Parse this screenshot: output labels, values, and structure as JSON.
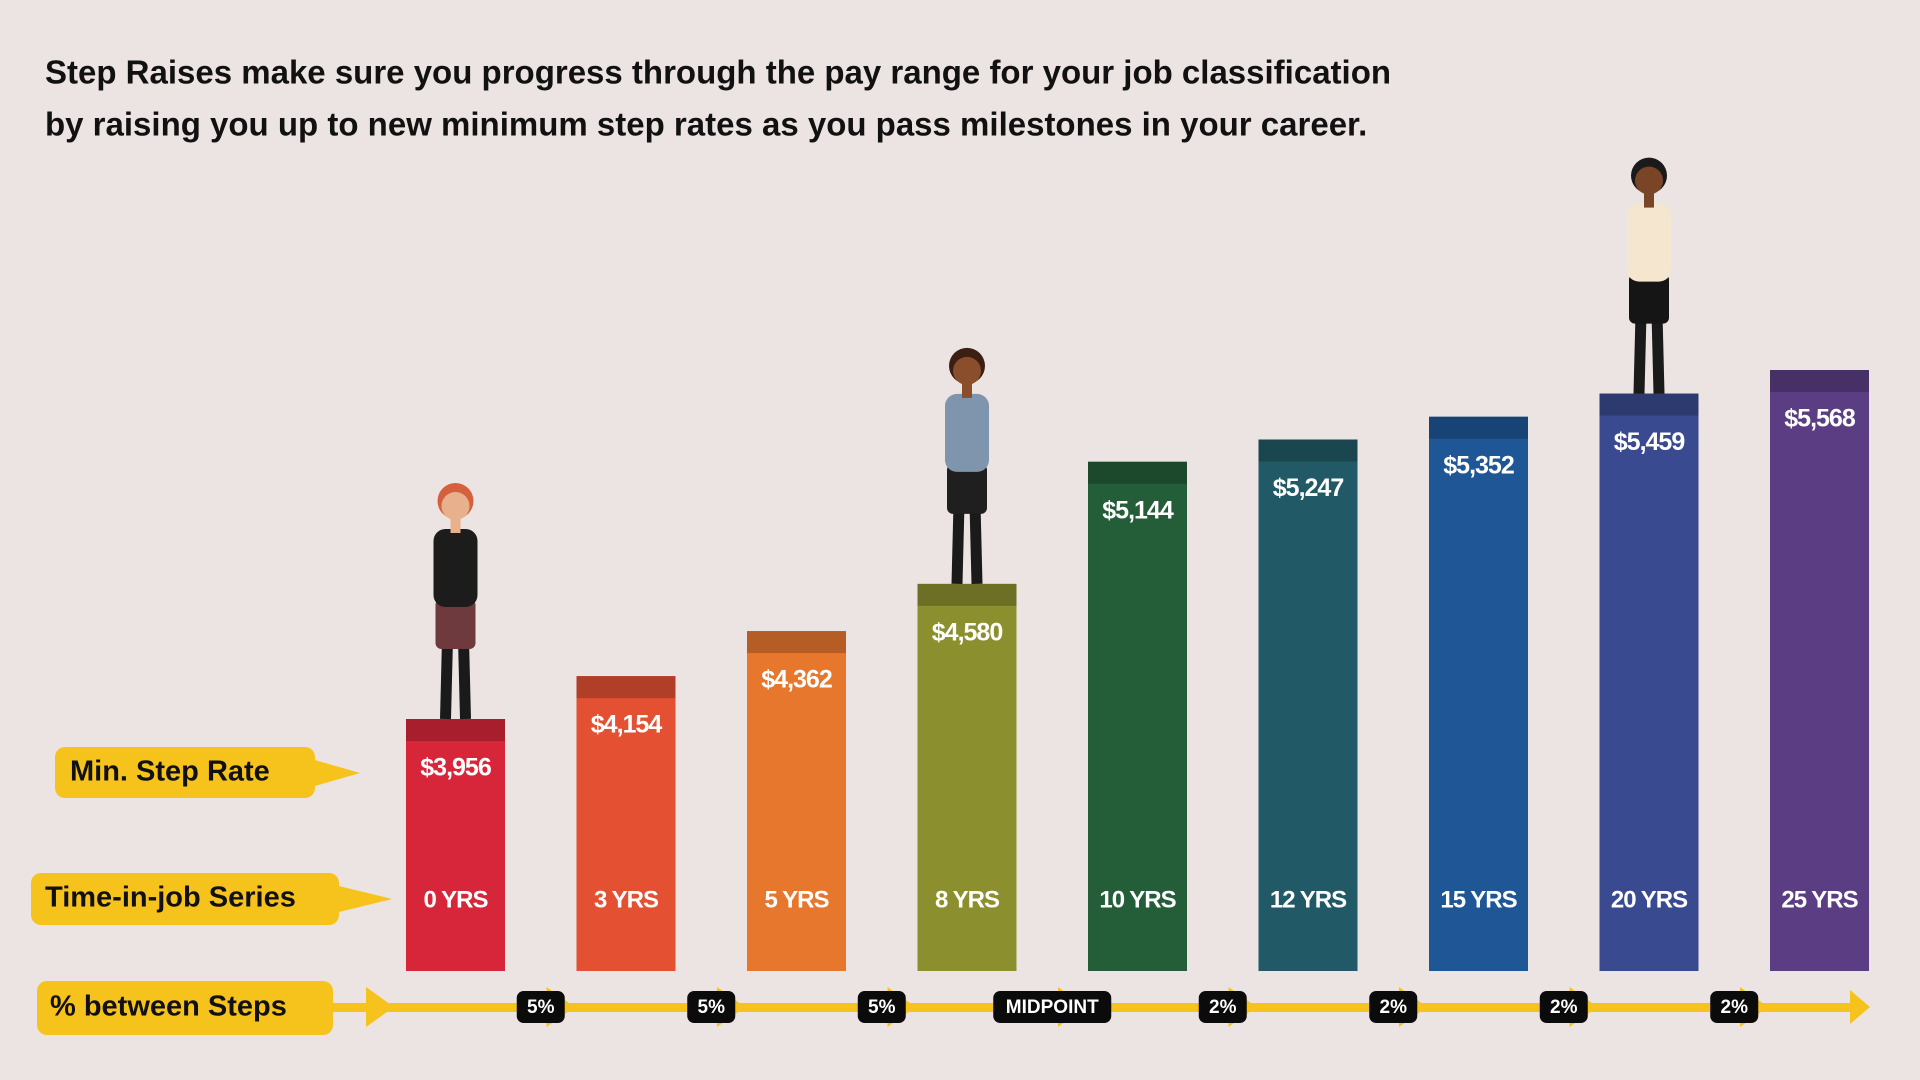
{
  "chart_data": {
    "type": "bar",
    "title_lines": [
      "Step Raises make sure you progress through the pay range for your job classification",
      "by raising you up to new minimum step rates as you pass milestones in your career."
    ],
    "row_labels": [
      "Min. Step Rate",
      "Time-in-job Series",
      "% between Steps"
    ],
    "categories": [
      "0 YRS",
      "3 YRS",
      "5 YRS",
      "8 YRS",
      "10 YRS",
      "12 YRS",
      "15 YRS",
      "20 YRS",
      "25 YRS"
    ],
    "values": [
      3956,
      4154,
      4362,
      4580,
      5144,
      5247,
      5352,
      5459,
      5568
    ],
    "value_labels": [
      "$3,956",
      "$4,154",
      "$4,362",
      "$4,580",
      "$5,144",
      "$5,247",
      "$5,352",
      "$5,459",
      "$5,568"
    ],
    "colors": [
      "#d7263a",
      "#e35032",
      "#e8772e",
      "#8c8f2e",
      "#245e38",
      "#215a66",
      "#1f5696",
      "#3a4a90",
      "#5a3d82"
    ],
    "steps": {
      "values": [
        5,
        5,
        5,
        null,
        2,
        2,
        2,
        2
      ],
      "value_labels": [
        "5%",
        "5%",
        "5%",
        "MIDPOINT",
        "2%",
        "2%",
        "2%",
        "2%"
      ]
    }
  }
}
